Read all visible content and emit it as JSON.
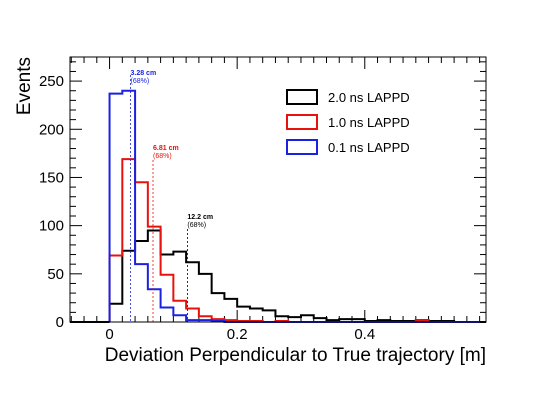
{
  "chart_data": {
    "type": "histogram",
    "title": "",
    "xlabel": "Deviation Perpendicular to True trajectory [m]",
    "ylabel": "Events",
    "xlim": [
      -0.062,
      0.59
    ],
    "ylim": [
      0,
      275
    ],
    "x_ticks": [
      0,
      0.2,
      0.4
    ],
    "x_tick_labels": [
      "0",
      "0.2",
      "0.4"
    ],
    "y_ticks": [
      0,
      50,
      100,
      150,
      200,
      250
    ],
    "y_tick_labels": [
      "0",
      "50",
      "100",
      "150",
      "200",
      "250"
    ],
    "bin_edges": [
      0,
      0.02,
      0.04,
      0.06,
      0.08,
      0.1,
      0.12,
      0.14,
      0.16,
      0.18,
      0.2,
      0.22,
      0.24,
      0.26,
      0.28,
      0.3,
      0.32,
      0.34,
      0.36,
      0.38,
      0.4,
      0.42,
      0.44,
      0.46,
      0.48,
      0.5,
      0.52,
      0.54,
      0.56,
      0.58
    ],
    "series": [
      {
        "name": "2.0 ns LAPPD",
        "color": "#000000",
        "values": [
          19,
          74,
          84,
          95,
          70,
          73,
          62,
          50,
          30,
          24,
          16,
          14,
          12,
          6,
          5,
          7,
          4,
          2,
          3,
          3,
          1,
          2,
          1,
          1,
          2,
          1,
          1,
          0,
          0
        ]
      },
      {
        "name": "1.0 ns LAPPD",
        "color": "#e8120c",
        "values": [
          69,
          169,
          145,
          99,
          49,
          22,
          14,
          6,
          3,
          2,
          1,
          1,
          0,
          1,
          0,
          0,
          0,
          0,
          0,
          0,
          0,
          0,
          0,
          0,
          2,
          0,
          0,
          0,
          0
        ]
      },
      {
        "name": "0.1 ns LAPPD",
        "color": "#1a22e0",
        "values": [
          237,
          240,
          60,
          34,
          15,
          7,
          2,
          2,
          1,
          0,
          0,
          0,
          0,
          0,
          0,
          0,
          0,
          0,
          0,
          0,
          0,
          0,
          0,
          0,
          0,
          0,
          0,
          0,
          0
        ]
      }
    ],
    "legend_position": "top-right",
    "annotations": [
      {
        "value": "3.28 cm",
        "percent": "(68%)",
        "x": 0.0328,
        "color": "#1a22e0"
      },
      {
        "value": "6.81 cm",
        "percent": "(68%)",
        "x": 0.0681,
        "color": "#e8120c"
      },
      {
        "value": "12.2 cm",
        "percent": "(68%)",
        "x": 0.122,
        "color": "#000000"
      }
    ]
  }
}
